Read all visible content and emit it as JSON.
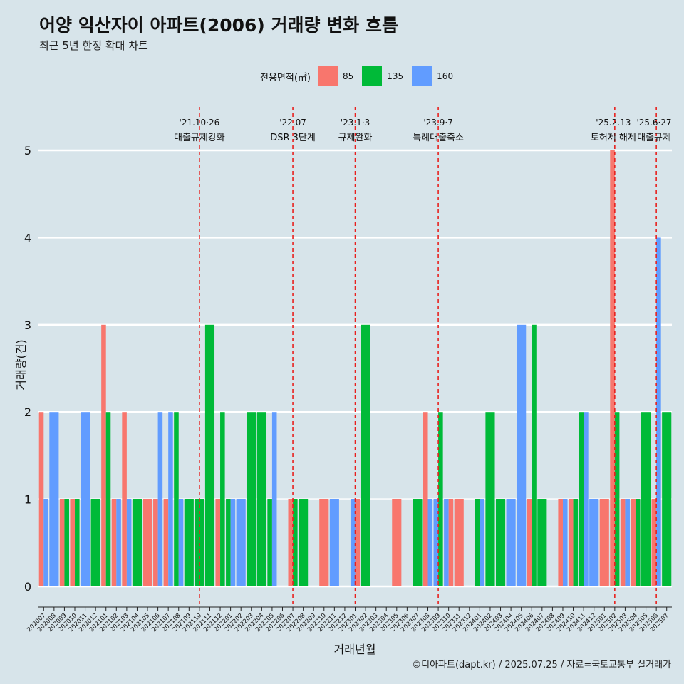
{
  "title": "어양 익산자이 아파트(2006) 거래량 변화 흐름",
  "subtitle": "최근 5년 한정 확대 차트",
  "caption": "©디아파트(dapt.kr) / 2025.07.25 / 자료=국토교통부 실거래가",
  "chart_data": {
    "type": "bar",
    "xlabel": "거래년월",
    "ylabel": "거래량(건)",
    "ylim": [
      0,
      5.3
    ],
    "yticks": [
      0,
      1,
      2,
      3,
      4,
      5
    ],
    "grid": true,
    "legend": {
      "title": "전용면적(㎡)",
      "position": "top",
      "entries": [
        {
          "name": "85",
          "color": "#F8766D"
        },
        {
          "name": "135",
          "color": "#00BA38"
        },
        {
          "name": "160",
          "color": "#619CFF"
        }
      ]
    },
    "categories": [
      "202007",
      "202008",
      "202009",
      "202010",
      "202011",
      "202012",
      "202101",
      "202102",
      "202103",
      "202104",
      "202105",
      "202106",
      "202107",
      "202108",
      "202109",
      "202110",
      "202111",
      "202112",
      "202201",
      "202202",
      "202203",
      "202204",
      "202205",
      "202206",
      "202207",
      "202208",
      "202209",
      "202210",
      "202211",
      "202212",
      "202301",
      "202302",
      "202303",
      "202304",
      "202305",
      "202306",
      "202307",
      "202308",
      "202309",
      "202310",
      "202311",
      "202312",
      "202401",
      "202402",
      "202403",
      "202404",
      "202405",
      "202406",
      "202407",
      "202408",
      "202409",
      "202410",
      "202411",
      "202412",
      "202501",
      "202502",
      "202503",
      "202504",
      "202505",
      "202506",
      "202507"
    ],
    "bars": [
      {
        "x": "202007",
        "groups": [
          {
            "size": "85",
            "value": 2
          },
          {
            "size": "160",
            "value": 1
          }
        ]
      },
      {
        "x": "202008",
        "groups": [
          {
            "size": "160",
            "value": 2
          }
        ]
      },
      {
        "x": "202009",
        "groups": [
          {
            "size": "85",
            "value": 1
          },
          {
            "size": "135",
            "value": 1
          }
        ]
      },
      {
        "x": "202010",
        "groups": [
          {
            "size": "85",
            "value": 1
          },
          {
            "size": "135",
            "value": 1
          }
        ]
      },
      {
        "x": "202011",
        "groups": [
          {
            "size": "160",
            "value": 2
          }
        ]
      },
      {
        "x": "202012",
        "groups": [
          {
            "size": "135",
            "value": 1
          }
        ]
      },
      {
        "x": "202101",
        "groups": [
          {
            "size": "85",
            "value": 3
          },
          {
            "size": "135",
            "value": 2
          }
        ]
      },
      {
        "x": "202102",
        "groups": [
          {
            "size": "85",
            "value": 1
          },
          {
            "size": "160",
            "value": 1
          }
        ]
      },
      {
        "x": "202103",
        "groups": [
          {
            "size": "85",
            "value": 2
          },
          {
            "size": "160",
            "value": 1
          }
        ]
      },
      {
        "x": "202104",
        "groups": [
          {
            "size": "135",
            "value": 1
          }
        ]
      },
      {
        "x": "202105",
        "groups": [
          {
            "size": "85",
            "value": 1
          }
        ]
      },
      {
        "x": "202106",
        "groups": [
          {
            "size": "85",
            "value": 1
          },
          {
            "size": "160",
            "value": 2
          }
        ]
      },
      {
        "x": "202107",
        "groups": [
          {
            "size": "85",
            "value": 1
          },
          {
            "size": "160",
            "value": 2
          }
        ]
      },
      {
        "x": "202108",
        "groups": [
          {
            "size": "135",
            "value": 2
          },
          {
            "size": "160",
            "value": 1
          }
        ]
      },
      {
        "x": "202109",
        "groups": [
          {
            "size": "135",
            "value": 1
          }
        ]
      },
      {
        "x": "202110",
        "groups": [
          {
            "size": "135",
            "value": 1
          }
        ]
      },
      {
        "x": "202111",
        "groups": [
          {
            "size": "135",
            "value": 3
          }
        ]
      },
      {
        "x": "202112",
        "groups": [
          {
            "size": "85",
            "value": 1
          },
          {
            "size": "135",
            "value": 2
          }
        ]
      },
      {
        "x": "202201",
        "groups": [
          {
            "size": "135",
            "value": 1
          },
          {
            "size": "160",
            "value": 1
          }
        ]
      },
      {
        "x": "202202",
        "groups": [
          {
            "size": "160",
            "value": 1
          }
        ]
      },
      {
        "x": "202203",
        "groups": [
          {
            "size": "135",
            "value": 2
          }
        ]
      },
      {
        "x": "202204",
        "groups": [
          {
            "size": "135",
            "value": 2
          }
        ]
      },
      {
        "x": "202205",
        "groups": [
          {
            "size": "135",
            "value": 1
          },
          {
            "size": "160",
            "value": 2
          }
        ]
      },
      {
        "x": "202206",
        "groups": []
      },
      {
        "x": "202207",
        "groups": [
          {
            "size": "85",
            "value": 1
          },
          {
            "size": "135",
            "value": 1
          }
        ]
      },
      {
        "x": "202208",
        "groups": [
          {
            "size": "135",
            "value": 1
          }
        ]
      },
      {
        "x": "202209",
        "groups": []
      },
      {
        "x": "202210",
        "groups": [
          {
            "size": "85",
            "value": 1
          }
        ]
      },
      {
        "x": "202211",
        "groups": [
          {
            "size": "160",
            "value": 1
          }
        ]
      },
      {
        "x": "202212",
        "groups": []
      },
      {
        "x": "202301",
        "groups": [
          {
            "size": "160",
            "value": 1
          },
          {
            "size": "85",
            "value": 1
          }
        ]
      },
      {
        "x": "202302",
        "groups": [
          {
            "size": "135",
            "value": 3
          }
        ]
      },
      {
        "x": "202303",
        "groups": []
      },
      {
        "x": "202304",
        "groups": []
      },
      {
        "x": "202305",
        "groups": [
          {
            "size": "85",
            "value": 1
          }
        ]
      },
      {
        "x": "202306",
        "groups": []
      },
      {
        "x": "202307",
        "groups": [
          {
            "size": "135",
            "value": 1
          }
        ]
      },
      {
        "x": "202308",
        "groups": [
          {
            "size": "85",
            "value": 2
          },
          {
            "size": "160",
            "value": 1
          }
        ]
      },
      {
        "x": "202309",
        "groups": [
          {
            "size": "160",
            "value": 1
          },
          {
            "size": "135",
            "value": 2
          }
        ]
      },
      {
        "x": "202310",
        "groups": [
          {
            "size": "160",
            "value": 1
          },
          {
            "size": "85",
            "value": 1
          }
        ]
      },
      {
        "x": "202311",
        "groups": [
          {
            "size": "85",
            "value": 1
          }
        ]
      },
      {
        "x": "202312",
        "groups": []
      },
      {
        "x": "202401",
        "groups": [
          {
            "size": "135",
            "value": 1
          },
          {
            "size": "160",
            "value": 1
          }
        ]
      },
      {
        "x": "202402",
        "groups": [
          {
            "size": "135",
            "value": 2
          }
        ]
      },
      {
        "x": "202403",
        "groups": [
          {
            "size": "135",
            "value": 1
          }
        ]
      },
      {
        "x": "202404",
        "groups": [
          {
            "size": "160",
            "value": 1
          }
        ]
      },
      {
        "x": "202405",
        "groups": [
          {
            "size": "160",
            "value": 3
          }
        ]
      },
      {
        "x": "202406",
        "groups": [
          {
            "size": "85",
            "value": 1
          },
          {
            "size": "135",
            "value": 3
          }
        ]
      },
      {
        "x": "202407",
        "groups": [
          {
            "size": "135",
            "value": 1
          }
        ]
      },
      {
        "x": "202408",
        "groups": []
      },
      {
        "x": "202409",
        "groups": [
          {
            "size": "85",
            "value": 1
          },
          {
            "size": "160",
            "value": 1
          }
        ]
      },
      {
        "x": "202410",
        "groups": [
          {
            "size": "85",
            "value": 1
          },
          {
            "size": "135",
            "value": 1
          }
        ]
      },
      {
        "x": "202411",
        "groups": [
          {
            "size": "135",
            "value": 2
          },
          {
            "size": "160",
            "value": 2
          }
        ]
      },
      {
        "x": "202412",
        "groups": [
          {
            "size": "160",
            "value": 1
          }
        ]
      },
      {
        "x": "202501",
        "groups": [
          {
            "size": "85",
            "value": 1
          }
        ]
      },
      {
        "x": "202502",
        "groups": [
          {
            "size": "85",
            "value": 5
          },
          {
            "size": "135",
            "value": 2
          }
        ]
      },
      {
        "x": "202503",
        "groups": [
          {
            "size": "85",
            "value": 1
          },
          {
            "size": "160",
            "value": 1
          }
        ]
      },
      {
        "x": "202504",
        "groups": [
          {
            "size": "85",
            "value": 1
          },
          {
            "size": "135",
            "value": 1
          }
        ]
      },
      {
        "x": "202505",
        "groups": [
          {
            "size": "135",
            "value": 2
          }
        ]
      },
      {
        "x": "202506",
        "groups": [
          {
            "size": "85",
            "value": 1
          },
          {
            "size": "160",
            "value": 4
          }
        ]
      },
      {
        "x": "202507",
        "groups": [
          {
            "size": "135",
            "value": 2
          }
        ]
      }
    ],
    "annotations": [
      {
        "x": "202110",
        "date": "'21.10·26",
        "text": "대출규제강화"
      },
      {
        "x": "202207",
        "date": "'22.07",
        "text": "DSR 3단계"
      },
      {
        "x": "202301",
        "date": "'23.1·3",
        "text": "규제완화"
      },
      {
        "x": "202309",
        "date": "'23.9·7",
        "text": "특례대출축소"
      },
      {
        "x": "202502",
        "date": "'25.2.13",
        "text": "토허제 해제"
      },
      {
        "x": "202506",
        "date": "'25.6·27",
        "text": "대출규제"
      }
    ]
  }
}
